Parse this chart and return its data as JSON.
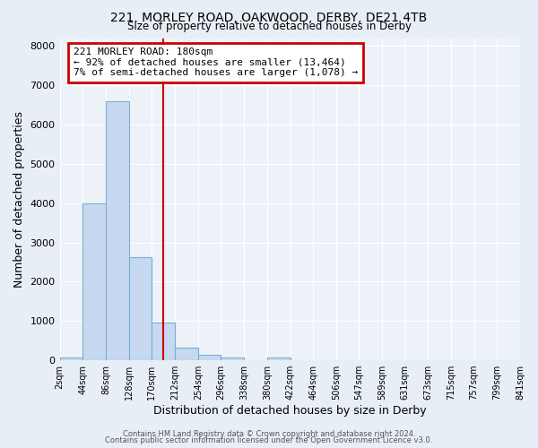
{
  "title_line1": "221, MORLEY ROAD, OAKWOOD, DERBY, DE21 4TB",
  "title_line2": "Size of property relative to detached houses in Derby",
  "xlabel": "Distribution of detached houses by size in Derby",
  "ylabel": "Number of detached properties",
  "bin_edges": [
    2,
    44,
    86,
    128,
    170,
    212,
    254,
    296,
    338,
    380,
    422,
    464,
    506,
    547,
    589,
    631,
    673,
    715,
    757,
    799,
    841
  ],
  "bin_labels": [
    "2sqm",
    "44sqm",
    "86sqm",
    "128sqm",
    "170sqm",
    "212sqm",
    "254sqm",
    "296sqm",
    "338sqm",
    "380sqm",
    "422sqm",
    "464sqm",
    "506sqm",
    "547sqm",
    "589sqm",
    "631sqm",
    "673sqm",
    "715sqm",
    "757sqm",
    "799sqm",
    "841sqm"
  ],
  "bar_heights": [
    70,
    4000,
    6600,
    2620,
    970,
    320,
    130,
    80,
    0,
    70,
    0,
    0,
    0,
    0,
    0,
    0,
    0,
    0,
    0,
    0
  ],
  "bar_color": "#c6d9f0",
  "bar_edgecolor": "#7bafd4",
  "vline_x": 191,
  "vline_color": "#cc0000",
  "annotation_title": "221 MORLEY ROAD: 180sqm",
  "annotation_line1": "← 92% of detached houses are smaller (13,464)",
  "annotation_line2": "7% of semi-detached houses are larger (1,078) →",
  "annotation_box_color": "#cc0000",
  "ylim": [
    0,
    8200
  ],
  "yticks": [
    0,
    1000,
    2000,
    3000,
    4000,
    5000,
    6000,
    7000,
    8000
  ],
  "footer_line1": "Contains HM Land Registry data © Crown copyright and database right 2024.",
  "footer_line2": "Contains public sector information licensed under the Open Government Licence v3.0.",
  "bg_color": "#e8eef5",
  "plot_bg_color": "#edf2f8"
}
